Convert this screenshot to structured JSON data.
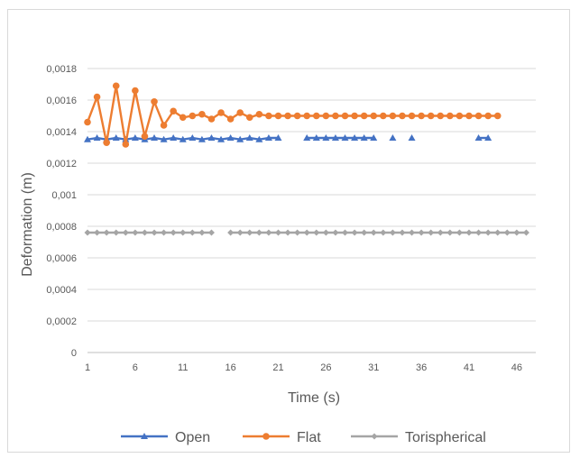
{
  "chart_data": {
    "type": "line",
    "title": "",
    "xlabel": "Time (s)",
    "ylabel": "Deformation (m)",
    "xlim": [
      1,
      48
    ],
    "ylim": [
      0,
      0.0018
    ],
    "x_ticks": [
      "1",
      "6",
      "11",
      "16",
      "21",
      "26",
      "31",
      "36",
      "41",
      "46"
    ],
    "y_ticks": [
      "0",
      "0,0002",
      "0,0004",
      "0,0006",
      "0,0008",
      "0,001",
      "0,0012",
      "0,0014",
      "0,0016",
      "0,0018"
    ],
    "grid": true,
    "legend_position": "bottom",
    "series": [
      {
        "name": "Open",
        "color": "#4472C4",
        "marker": "triangle",
        "x": [
          1,
          2,
          3,
          4,
          5,
          6,
          7,
          8,
          9,
          10,
          11,
          12,
          13,
          14,
          15,
          16,
          17,
          18,
          19,
          20,
          21,
          24,
          25,
          26,
          27,
          28,
          29,
          30,
          31,
          33,
          35,
          42,
          43
        ],
        "values": [
          0.00135,
          0.00136,
          0.00135,
          0.00136,
          0.00135,
          0.00136,
          0.00135,
          0.00136,
          0.00135,
          0.00136,
          0.00135,
          0.00136,
          0.00135,
          0.00136,
          0.00135,
          0.00136,
          0.00135,
          0.00136,
          0.00135,
          0.00136,
          0.00136,
          0.00136,
          0.00136,
          0.00136,
          0.00136,
          0.00136,
          0.00136,
          0.00136,
          0.00136,
          0.00136,
          0.00136,
          0.00136,
          0.00136
        ],
        "segments": [
          [
            1,
            21
          ],
          [
            24,
            31
          ],
          [
            33,
            33
          ],
          [
            35,
            35
          ],
          [
            42,
            43
          ]
        ]
      },
      {
        "name": "Flat",
        "color": "#ED7D31",
        "marker": "circle",
        "x": [
          1,
          2,
          3,
          4,
          5,
          6,
          7,
          8,
          9,
          10,
          11,
          12,
          13,
          14,
          15,
          16,
          17,
          18,
          19,
          20,
          21,
          22,
          23,
          24,
          25,
          26,
          27,
          28,
          29,
          30,
          31,
          32,
          33,
          34,
          35,
          36,
          37,
          38,
          39,
          40,
          41,
          42,
          43,
          44
        ],
        "values": [
          0.00146,
          0.00162,
          0.00133,
          0.00169,
          0.00132,
          0.00166,
          0.00137,
          0.00159,
          0.00144,
          0.00153,
          0.00149,
          0.0015,
          0.00151,
          0.00148,
          0.00152,
          0.00148,
          0.00152,
          0.00149,
          0.00151,
          0.0015,
          0.0015,
          0.0015,
          0.0015,
          0.0015,
          0.0015,
          0.0015,
          0.0015,
          0.0015,
          0.0015,
          0.0015,
          0.0015,
          0.0015,
          0.0015,
          0.0015,
          0.0015,
          0.0015,
          0.0015,
          0.0015,
          0.0015,
          0.0015,
          0.0015,
          0.0015,
          0.0015,
          0.0015
        ],
        "segments": [
          [
            1,
            44
          ]
        ]
      },
      {
        "name": "Torispherical",
        "color": "#A5A5A5",
        "marker": "diamond",
        "x": [
          1,
          2,
          3,
          4,
          5,
          6,
          7,
          8,
          9,
          10,
          11,
          12,
          13,
          14,
          16,
          17,
          18,
          19,
          20,
          21,
          22,
          23,
          24,
          25,
          26,
          27,
          28,
          29,
          30,
          31,
          32,
          33,
          34,
          35,
          36,
          37,
          38,
          39,
          40,
          41,
          42,
          43,
          44,
          45,
          46,
          47
        ],
        "values": [
          0.00076,
          0.00076,
          0.00076,
          0.00076,
          0.00076,
          0.00076,
          0.00076,
          0.00076,
          0.00076,
          0.00076,
          0.00076,
          0.00076,
          0.00076,
          0.00076,
          0.00076,
          0.00076,
          0.00076,
          0.00076,
          0.00076,
          0.00076,
          0.00076,
          0.00076,
          0.00076,
          0.00076,
          0.00076,
          0.00076,
          0.00076,
          0.00076,
          0.00076,
          0.00076,
          0.00076,
          0.00076,
          0.00076,
          0.00076,
          0.00076,
          0.00076,
          0.00076,
          0.00076,
          0.00076,
          0.00076,
          0.00076,
          0.00076,
          0.00076,
          0.00076,
          0.00076,
          0.00076
        ],
        "segments": [
          [
            1,
            14
          ],
          [
            16,
            47
          ]
        ]
      }
    ]
  }
}
